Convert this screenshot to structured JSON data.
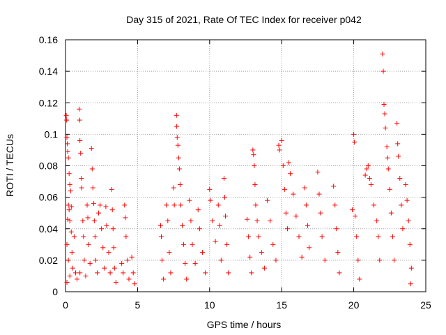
{
  "chart_data": {
    "type": "scatter",
    "title": "Day 315 of 2021, Rate Of TEC Index for receiver p042",
    "xlabel": "GPS time / hours",
    "ylabel": "ROTI / TECUs",
    "xlim": [
      0,
      25
    ],
    "ylim": [
      0,
      0.16
    ],
    "x_ticks": [
      "0",
      "5",
      "10",
      "15",
      "20",
      "25"
    ],
    "y_ticks": [
      "0",
      "0.02",
      "0.04",
      "0.06",
      "0.08",
      "0.1",
      "0.12",
      "0.14",
      "0.16"
    ],
    "grid": true,
    "marker": "+",
    "color": "#ff0000",
    "series": [
      {
        "name": "ROTI",
        "points": [
          [
            0.05,
            0.112
          ],
          [
            0.08,
            0.109
          ],
          [
            0.1,
            0.098
          ],
          [
            0.12,
            0.094
          ],
          [
            0.15,
            0.089
          ],
          [
            0.2,
            0.085
          ],
          [
            0.25,
            0.075
          ],
          [
            0.3,
            0.068
          ],
          [
            0.2,
            0.055
          ],
          [
            0.15,
            0.046
          ],
          [
            0.3,
            0.045
          ],
          [
            0.25,
            0.052
          ],
          [
            0.4,
            0.038
          ],
          [
            0.1,
            0.03
          ],
          [
            0.2,
            0.02
          ],
          [
            0.3,
            0.01
          ],
          [
            0.1,
            0.006
          ],
          [
            0.5,
            0.015
          ],
          [
            0.45,
            0.025
          ],
          [
            0.6,
            0.035
          ],
          [
            0.7,
            0.012
          ],
          [
            0.8,
            0.008
          ],
          [
            0.35,
            0.064
          ],
          [
            0.42,
            0.054
          ],
          [
            0.95,
            0.116
          ],
          [
            0.98,
            0.109
          ],
          [
            1.0,
            0.096
          ],
          [
            1.05,
            0.088
          ],
          [
            1.1,
            0.072
          ],
          [
            1.12,
            0.066
          ],
          [
            1.2,
            0.045
          ],
          [
            1.25,
            0.035
          ],
          [
            1.3,
            0.02
          ],
          [
            1.4,
            0.01
          ],
          [
            1.0,
            0.012
          ],
          [
            1.5,
            0.055
          ],
          [
            1.55,
            0.047
          ],
          [
            1.6,
            0.03
          ],
          [
            1.7,
            0.018
          ],
          [
            1.8,
            0.091
          ],
          [
            1.85,
            0.078
          ],
          [
            1.9,
            0.066
          ],
          [
            1.95,
            0.056
          ],
          [
            2.0,
            0.045
          ],
          [
            2.05,
            0.035
          ],
          [
            2.1,
            0.02
          ],
          [
            2.2,
            0.012
          ],
          [
            2.3,
            0.05
          ],
          [
            2.4,
            0.055
          ],
          [
            2.5,
            0.04
          ],
          [
            2.6,
            0.028
          ],
          [
            2.7,
            0.015
          ],
          [
            2.8,
            0.054
          ],
          [
            2.85,
            0.042
          ],
          [
            3.0,
            0.025
          ],
          [
            3.1,
            0.012
          ],
          [
            3.2,
            0.065
          ],
          [
            3.25,
            0.052
          ],
          [
            3.3,
            0.04
          ],
          [
            3.35,
            0.028
          ],
          [
            3.4,
            0.015
          ],
          [
            3.5,
            0.006
          ],
          [
            3.9,
            0.018
          ],
          [
            4.0,
            0.012
          ],
          [
            4.1,
            0.055
          ],
          [
            4.15,
            0.047
          ],
          [
            4.2,
            0.035
          ],
          [
            4.3,
            0.02
          ],
          [
            4.4,
            0.008
          ],
          [
            4.6,
            0.022
          ],
          [
            4.7,
            0.012
          ],
          [
            4.8,
            0.005
          ],
          [
            6.6,
            0.042
          ],
          [
            6.65,
            0.035
          ],
          [
            6.7,
            0.02
          ],
          [
            6.8,
            0.008
          ],
          [
            7.0,
            0.055
          ],
          [
            7.1,
            0.045
          ],
          [
            7.2,
            0.025
          ],
          [
            7.3,
            0.012
          ],
          [
            7.5,
            0.066
          ],
          [
            7.55,
            0.055
          ],
          [
            7.7,
            0.112
          ],
          [
            7.72,
            0.105
          ],
          [
            7.75,
            0.098
          ],
          [
            7.8,
            0.093
          ],
          [
            7.85,
            0.085
          ],
          [
            7.9,
            0.078
          ],
          [
            7.95,
            0.068
          ],
          [
            8.0,
            0.055
          ],
          [
            8.1,
            0.042
          ],
          [
            8.2,
            0.03
          ],
          [
            8.3,
            0.018
          ],
          [
            8.4,
            0.008
          ],
          [
            8.6,
            0.058
          ],
          [
            8.7,
            0.045
          ],
          [
            8.8,
            0.03
          ],
          [
            9.0,
            0.018
          ],
          [
            9.2,
            0.052
          ],
          [
            9.3,
            0.04
          ],
          [
            9.5,
            0.025
          ],
          [
            9.7,
            0.012
          ],
          [
            10.0,
            0.065
          ],
          [
            10.05,
            0.058
          ],
          [
            10.2,
            0.045
          ],
          [
            10.4,
            0.032
          ],
          [
            10.6,
            0.055
          ],
          [
            10.7,
            0.042
          ],
          [
            10.8,
            0.02
          ],
          [
            11.0,
            0.072
          ],
          [
            11.05,
            0.06
          ],
          [
            11.1,
            0.048
          ],
          [
            11.2,
            0.03
          ],
          [
            11.3,
            0.012
          ],
          [
            12.6,
            0.046
          ],
          [
            12.7,
            0.035
          ],
          [
            12.8,
            0.022
          ],
          [
            12.9,
            0.012
          ],
          [
            13.0,
            0.09
          ],
          [
            13.05,
            0.087
          ],
          [
            13.1,
            0.08
          ],
          [
            13.15,
            0.068
          ],
          [
            13.2,
            0.055
          ],
          [
            13.3,
            0.045
          ],
          [
            13.4,
            0.035
          ],
          [
            13.6,
            0.025
          ],
          [
            13.8,
            0.015
          ],
          [
            14.0,
            0.058
          ],
          [
            14.2,
            0.045
          ],
          [
            14.4,
            0.03
          ],
          [
            14.6,
            0.02
          ],
          [
            14.8,
            0.093
          ],
          [
            14.85,
            0.09
          ],
          [
            15.0,
            0.096
          ],
          [
            15.1,
            0.08
          ],
          [
            15.2,
            0.065
          ],
          [
            15.3,
            0.05
          ],
          [
            15.4,
            0.04
          ],
          [
            15.5,
            0.082
          ],
          [
            15.6,
            0.075
          ],
          [
            15.8,
            0.062
          ],
          [
            16.0,
            0.048
          ],
          [
            16.2,
            0.035
          ],
          [
            16.4,
            0.022
          ],
          [
            16.6,
            0.066
          ],
          [
            16.7,
            0.055
          ],
          [
            16.8,
            0.042
          ],
          [
            16.9,
            0.028
          ],
          [
            17.5,
            0.076
          ],
          [
            17.6,
            0.062
          ],
          [
            17.7,
            0.05
          ],
          [
            17.8,
            0.035
          ],
          [
            18.0,
            0.02
          ],
          [
            18.6,
            0.067
          ],
          [
            18.7,
            0.055
          ],
          [
            18.8,
            0.04
          ],
          [
            18.9,
            0.025
          ],
          [
            19.0,
            0.012
          ],
          [
            19.9,
            0.052
          ],
          [
            20.0,
            0.1
          ],
          [
            20.05,
            0.095
          ],
          [
            20.1,
            0.048
          ],
          [
            20.2,
            0.035
          ],
          [
            20.3,
            0.02
          ],
          [
            20.4,
            0.008
          ],
          [
            20.8,
            0.074
          ],
          [
            20.9,
            0.078
          ],
          [
            21.0,
            0.08
          ],
          [
            21.1,
            0.072
          ],
          [
            21.2,
            0.068
          ],
          [
            21.4,
            0.055
          ],
          [
            21.6,
            0.045
          ],
          [
            21.7,
            0.035
          ],
          [
            21.8,
            0.02
          ],
          [
            22.0,
            0.151
          ],
          [
            22.05,
            0.14
          ],
          [
            22.1,
            0.119
          ],
          [
            22.15,
            0.113
          ],
          [
            22.2,
            0.104
          ],
          [
            22.3,
            0.092
          ],
          [
            22.35,
            0.085
          ],
          [
            22.4,
            0.078
          ],
          [
            22.5,
            0.065
          ],
          [
            22.6,
            0.05
          ],
          [
            22.7,
            0.035
          ],
          [
            22.8,
            0.02
          ],
          [
            23.0,
            0.107
          ],
          [
            23.05,
            0.094
          ],
          [
            23.1,
            0.086
          ],
          [
            23.2,
            0.072
          ],
          [
            23.3,
            0.055
          ],
          [
            23.4,
            0.04
          ],
          [
            23.6,
            0.068
          ],
          [
            23.7,
            0.058
          ],
          [
            23.8,
            0.045
          ],
          [
            23.9,
            0.03
          ],
          [
            24.0,
            0.015
          ],
          [
            23.95,
            0.005
          ]
        ]
      }
    ]
  }
}
